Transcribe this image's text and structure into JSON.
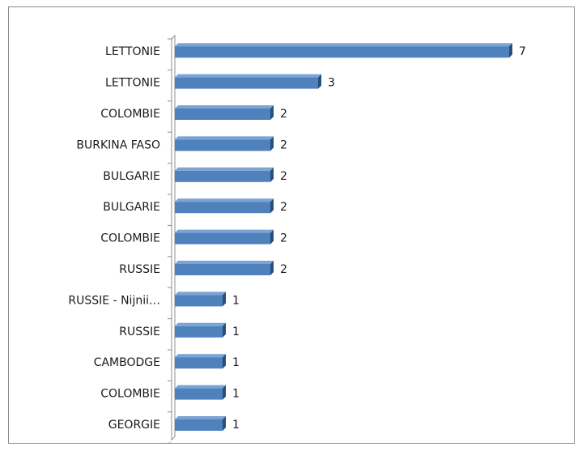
{
  "chart_data": {
    "type": "bar",
    "orientation": "horizontal",
    "title": "",
    "xlabel": "",
    "ylabel": "",
    "categories": [
      "LETTONIE",
      "LETTONIE",
      "COLOMBIE",
      "BURKINA FASO",
      "BULGARIE",
      "BULGARIE",
      "COLOMBIE",
      "RUSSIE",
      "RUSSIE - Nijnii…",
      "RUSSIE",
      "CAMBODGE",
      "COLOMBIE",
      "GEORGIE"
    ],
    "values": [
      7,
      3,
      2,
      2,
      2,
      2,
      2,
      2,
      1,
      1,
      1,
      1,
      1
    ],
    "xlim": [
      0,
      7
    ],
    "grid": false,
    "legend": "none",
    "bar_style": "3d",
    "colors": {
      "bar_front": "#4f81bd",
      "bar_top": "#7aa3d6",
      "bar_side": "#2c4d75",
      "axis": "#8c8c8c",
      "frame": "#8c8c8c"
    }
  }
}
